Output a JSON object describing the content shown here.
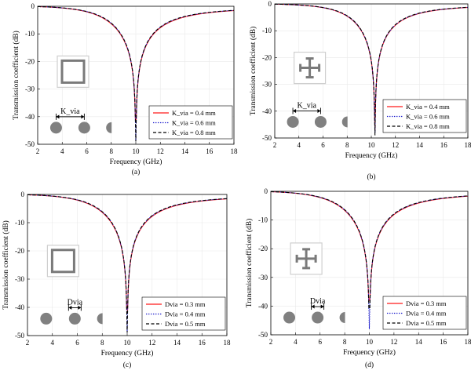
{
  "colors": {
    "red": "#ff1a1a",
    "blue": "#1a1acc",
    "black": "#000000",
    "via": "#808080",
    "inset": "#7a7a7a"
  },
  "chart_data": [
    {
      "id": "a",
      "type": "line",
      "caption": "(a)",
      "xlabel": "Frequency (GHz)",
      "ylabel": "Transmission coefficient (dB)",
      "xlim": [
        2,
        18
      ],
      "ylim": [
        -50,
        0
      ],
      "xticks": [
        "2",
        "4",
        "6",
        "8",
        "10",
        "12",
        "14",
        "16",
        "18"
      ],
      "yticks": [
        "0",
        "-10",
        "-20",
        "-30",
        "-40",
        "-50"
      ],
      "inset_shape": "square-loop",
      "dim_label": "K_via",
      "legend": [
        "K_via = 0.4 mm",
        "K_via = 0.6 mm",
        "K_via = 0.8 mm"
      ],
      "series": [
        {
          "name": "K_via = 0.4 mm",
          "color": "red",
          "dash": "solid",
          "f0": 10.0,
          "B": 0.82,
          "min": -42
        },
        {
          "name": "K_via = 0.6 mm",
          "color": "blue",
          "dash": "dot",
          "f0": 10.0,
          "B": 0.8,
          "min": -49
        },
        {
          "name": "K_via = 0.8 mm",
          "color": "black",
          "dash": "dash",
          "f0": 10.0,
          "B": 0.79,
          "min": -49
        }
      ]
    },
    {
      "id": "b",
      "type": "line",
      "caption": "(b)",
      "xlabel": "Frequency (GHz)",
      "ylabel": "Transmission coefficient (dB)",
      "xlim": [
        2,
        18
      ],
      "ylim": [
        -50,
        0
      ],
      "xticks": [
        "2",
        "4",
        "6",
        "8",
        "10",
        "12",
        "14",
        "16",
        "18"
      ],
      "yticks": [
        "0",
        "-10",
        "-20",
        "-30",
        "-40",
        "-50"
      ],
      "inset_shape": "cross",
      "dim_label": "K_via",
      "legend": [
        "K_via = 0.4 mm",
        "K_via = 0.6 mm",
        "K_via = 0.8 mm"
      ],
      "series": [
        {
          "name": "K_via = 0.4 mm",
          "color": "red",
          "dash": "solid",
          "f0": 10.3,
          "B": 0.7,
          "min": -47
        },
        {
          "name": "K_via = 0.6 mm",
          "color": "blue",
          "dash": "dot",
          "f0": 10.3,
          "B": 0.69,
          "min": -48
        },
        {
          "name": "K_via = 0.8 mm",
          "color": "black",
          "dash": "dash",
          "f0": 10.3,
          "B": 0.68,
          "min": -49
        }
      ]
    },
    {
      "id": "c",
      "type": "line",
      "caption": "(c)",
      "xlabel": "Frequency (GHz)",
      "ylabel": "Transmission coefficient (dB)",
      "xlim": [
        2,
        18
      ],
      "ylim": [
        -50,
        0
      ],
      "xticks": [
        "2",
        "4",
        "6",
        "8",
        "10",
        "12",
        "14",
        "16",
        "18"
      ],
      "yticks": [
        "0",
        "-10",
        "-20",
        "-30",
        "-40",
        "-50"
      ],
      "inset_shape": "square-loop",
      "dim_label": "Dvia",
      "legend": [
        "Dvia = 0.3 mm",
        "Dvia = 0.4 mm",
        "Dvia = 0.5 mm"
      ],
      "series": [
        {
          "name": "Dvia = 0.3 mm",
          "color": "red",
          "dash": "solid",
          "f0": 10.0,
          "B": 0.82,
          "min": -41
        },
        {
          "name": "Dvia = 0.4 mm",
          "color": "blue",
          "dash": "dot",
          "f0": 10.0,
          "B": 0.8,
          "min": -49
        },
        {
          "name": "Dvia = 0.5 mm",
          "color": "black",
          "dash": "dash",
          "f0": 10.0,
          "B": 0.79,
          "min": -49
        }
      ]
    },
    {
      "id": "d",
      "type": "line",
      "caption": "(d)",
      "xlabel": "Frequency (GHz)",
      "ylabel": "Transmission coefficient (dB)",
      "xlim": [
        2,
        18
      ],
      "ylim": [
        -50,
        0
      ],
      "xticks": [
        "2",
        "4",
        "6",
        "8",
        "10",
        "12",
        "14",
        "16",
        "18"
      ],
      "yticks": [
        "0",
        "-10",
        "-20",
        "-30",
        "-40",
        "-50"
      ],
      "inset_shape": "cross",
      "dim_label": "Dvia",
      "legend": [
        "Dvia = 0.3 mm",
        "Dvia = 0.4 mm",
        "Dvia = 0.5 mm"
      ],
      "series": [
        {
          "name": "Dvia = 0.3 mm",
          "color": "red",
          "dash": "solid",
          "f0": 10.0,
          "B": 0.86,
          "min": -38
        },
        {
          "name": "Dvia = 0.4 mm",
          "color": "blue",
          "dash": "dot",
          "f0": 10.0,
          "B": 0.84,
          "min": -48
        },
        {
          "name": "Dvia = 0.5 mm",
          "color": "black",
          "dash": "dash",
          "f0": 10.0,
          "B": 0.83,
          "min": -41
        }
      ]
    }
  ]
}
